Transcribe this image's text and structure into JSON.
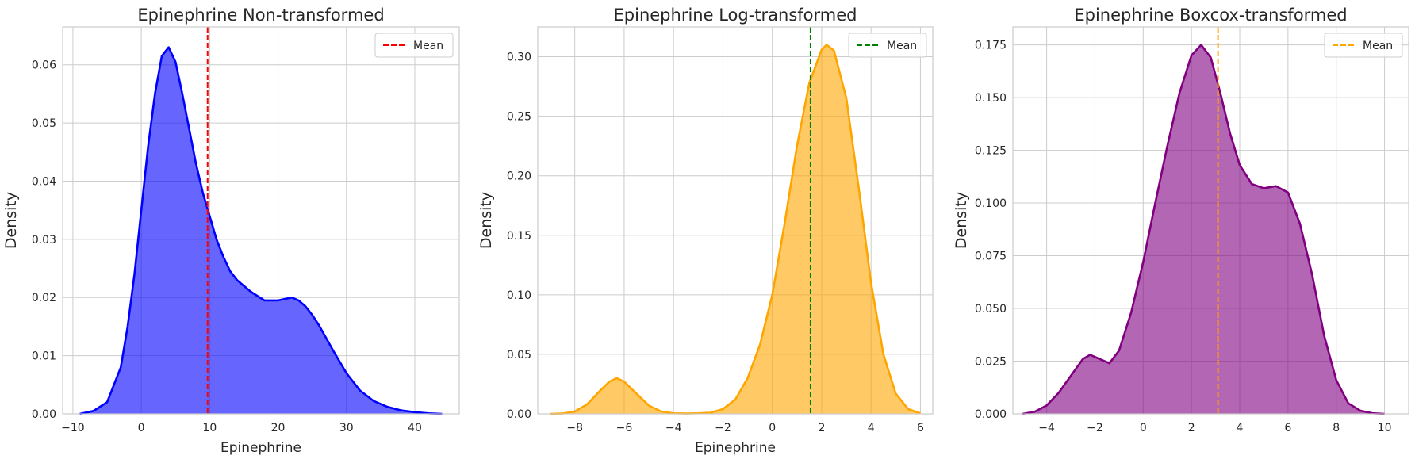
{
  "chart_data": [
    {
      "type": "area",
      "title": "Epinephrine Non-transformed",
      "xlabel": "Epinephrine",
      "ylabel": "Density",
      "xlim": [
        -11.5,
        46.5
      ],
      "ylim": [
        0,
        0.0665
      ],
      "xticks": [
        -10,
        0,
        10,
        20,
        30,
        40
      ],
      "yticks": [
        0.0,
        0.01,
        0.02,
        0.03,
        0.04,
        0.05,
        0.06
      ],
      "ytick_decimals": 2,
      "grid": true,
      "legend": {
        "label": "Mean",
        "placement": "top-right"
      },
      "mean": 9.7,
      "series": [
        {
          "fill_color": "#0000ff",
          "line_color": "#0000ff",
          "mean_color": "#ff0000",
          "x": [
            -9,
            -7,
            -5,
            -3,
            -2,
            -1,
            0,
            1,
            2,
            3,
            4,
            5,
            6,
            7,
            8,
            9,
            10,
            11,
            12,
            13,
            14,
            16,
            18,
            20,
            22,
            23,
            24,
            25,
            26,
            28,
            30,
            32,
            34,
            36,
            38,
            40,
            42,
            44
          ],
          "y": [
            0.0,
            0.0005,
            0.002,
            0.008,
            0.015,
            0.024,
            0.035,
            0.046,
            0.055,
            0.0615,
            0.063,
            0.0605,
            0.055,
            0.049,
            0.043,
            0.038,
            0.034,
            0.03,
            0.027,
            0.0245,
            0.023,
            0.021,
            0.0195,
            0.0195,
            0.02,
            0.0195,
            0.0185,
            0.017,
            0.0152,
            0.011,
            0.007,
            0.004,
            0.0022,
            0.0012,
            0.0006,
            0.0003,
            0.0001,
            0.0
          ]
        }
      ]
    },
    {
      "type": "area",
      "title": "Epinephrine Log-transformed",
      "xlabel": "Epinephrine",
      "ylabel": "Density",
      "xlim": [
        -9.5,
        6.5
      ],
      "ylim": [
        0,
        0.325
      ],
      "xticks": [
        -8,
        -6,
        -4,
        -2,
        0,
        2,
        4,
        6
      ],
      "yticks": [
        0.0,
        0.05,
        0.1,
        0.15,
        0.2,
        0.25,
        0.3
      ],
      "ytick_decimals": 2,
      "grid": true,
      "legend": {
        "label": "Mean",
        "placement": "top-right"
      },
      "mean": 1.55,
      "series": [
        {
          "fill_color": "#ffa500",
          "line_color": "#ffa500",
          "mean_color": "#008000",
          "x": [
            -9,
            -8.5,
            -8,
            -7.5,
            -7,
            -6.6,
            -6.3,
            -6,
            -5.6,
            -5,
            -4.5,
            -4,
            -3.5,
            -3,
            -2.5,
            -2,
            -1.5,
            -1,
            -0.5,
            0,
            0.5,
            1,
            1.5,
            2,
            2.2,
            2.5,
            3,
            3.5,
            4,
            4.5,
            5,
            5.5,
            6
          ],
          "y": [
            0.0,
            0.0003,
            0.002,
            0.008,
            0.019,
            0.027,
            0.03,
            0.027,
            0.019,
            0.007,
            0.002,
            0.0005,
            0.0003,
            0.0005,
            0.001,
            0.004,
            0.012,
            0.03,
            0.058,
            0.1,
            0.16,
            0.225,
            0.278,
            0.306,
            0.31,
            0.305,
            0.265,
            0.19,
            0.11,
            0.05,
            0.017,
            0.004,
            0.0005
          ]
        }
      ]
    },
    {
      "type": "area",
      "title": "Epinephrine Boxcox-transformed",
      "xlabel": "",
      "ylabel": "Density",
      "xlim": [
        -5.4,
        11.0
      ],
      "ylim": [
        0,
        0.1835
      ],
      "xticks": [
        -4,
        -2,
        0,
        2,
        4,
        6,
        8,
        10
      ],
      "yticks": [
        0.0,
        0.025,
        0.05,
        0.075,
        0.1,
        0.125,
        0.15,
        0.175
      ],
      "ytick_decimals": 3,
      "grid": true,
      "legend": {
        "label": "Mean",
        "placement": "top-right"
      },
      "mean": 3.1,
      "series": [
        {
          "fill_color": "#800080",
          "line_color": "#800080",
          "mean_color": "#ffa500",
          "x": [
            -5,
            -4.5,
            -4,
            -3.5,
            -3,
            -2.5,
            -2.2,
            -1.8,
            -1.4,
            -1,
            -0.5,
            0,
            0.5,
            1,
            1.5,
            2,
            2.4,
            2.8,
            3.2,
            3.6,
            4,
            4.5,
            5,
            5.5,
            6,
            6.5,
            7,
            7.5,
            8,
            8.5,
            9,
            9.5,
            10
          ],
          "y": [
            0.0,
            0.001,
            0.004,
            0.01,
            0.018,
            0.026,
            0.028,
            0.026,
            0.024,
            0.03,
            0.048,
            0.072,
            0.1,
            0.127,
            0.152,
            0.17,
            0.175,
            0.169,
            0.152,
            0.133,
            0.118,
            0.109,
            0.107,
            0.108,
            0.105,
            0.09,
            0.066,
            0.037,
            0.016,
            0.005,
            0.0015,
            0.0003,
            0.0
          ]
        }
      ]
    }
  ]
}
